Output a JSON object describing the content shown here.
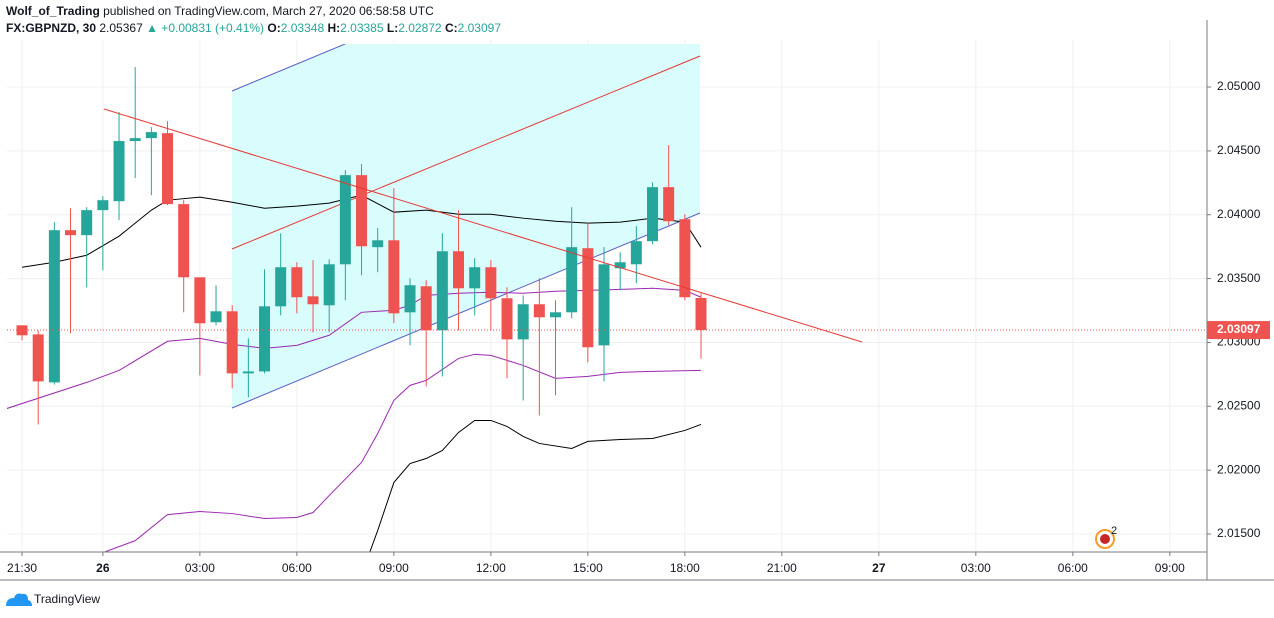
{
  "header": {
    "author": "Wolf_of_Trading",
    "published": "published on TradingView.com, March 27, 2020 06:58:58 UTC",
    "symbol": "FX:GBPNZD, 30",
    "price": "2.05367",
    "change": "▲ +0.00831 (+0.41%)",
    "ohlc": [
      {
        "label": "O:",
        "value": "2.03348"
      },
      {
        "label": "H:",
        "value": "2.03385"
      },
      {
        "label": "L:",
        "value": "2.02872"
      },
      {
        "label": "C:",
        "value": "2.03097"
      }
    ]
  },
  "badge": "2",
  "footer": "TradingView",
  "chart_data": {
    "type": "candlestick",
    "up_color": "#26a69a",
    "down_color": "#ef5350",
    "grid": true,
    "x": [
      0,
      1,
      2,
      3,
      4,
      5,
      6,
      7,
      8,
      9,
      10,
      11,
      12,
      13,
      14,
      15,
      16,
      17,
      18,
      19,
      20,
      21,
      22,
      23,
      24,
      25,
      26,
      27,
      28,
      29,
      30,
      31,
      32,
      33,
      34,
      35,
      36,
      37,
      38,
      39,
      40,
      41,
      42
    ],
    "open": [
      2.03134,
      2.03063,
      2.02687,
      2.03879,
      2.0384,
      2.04036,
      2.04106,
      2.04577,
      2.046,
      2.04639,
      2.04083,
      2.0351,
      2.03158,
      2.03244,
      2.02758,
      2.02773,
      2.03283,
      2.03589,
      2.03361,
      2.03291,
      2.03612,
      2.0431,
      2.03746,
      2.038,
      2.03236,
      2.0344,
      2.03095,
      2.03714,
      2.03424,
      2.03589,
      2.03346,
      2.03024,
      2.03299,
      2.03197,
      2.03236,
      2.03738,
      2.02977,
      2.03581,
      2.03612,
      2.03793,
      2.04216,
      2.03965,
      2.03348
    ],
    "high": [
      2.03134,
      2.03095,
      2.03942,
      2.04051,
      2.04059,
      2.04145,
      2.04804,
      2.05157,
      2.04686,
      2.04733,
      2.04114,
      2.0351,
      2.03448,
      2.03291,
      2.03032,
      2.03573,
      2.03855,
      2.03628,
      2.03644,
      2.03651,
      2.04349,
      2.04396,
      2.03895,
      2.04208,
      2.03503,
      2.03487,
      2.03855,
      2.04036,
      2.03659,
      2.03644,
      2.03432,
      2.03369,
      2.03503,
      2.0333,
      2.04059,
      2.03942,
      2.03746,
      2.03706,
      2.0391,
      2.04255,
      2.04545,
      2.04004,
      2.03385
    ],
    "low": [
      2.03016,
      2.02358,
      2.02671,
      2.03071,
      2.03432,
      2.03565,
      2.03957,
      2.04287,
      2.04153,
      2.04075,
      2.03236,
      2.02742,
      2.03134,
      2.0264,
      2.0257,
      2.02758,
      2.03212,
      2.03228,
      2.03079,
      2.03079,
      2.0333,
      2.03526,
      2.0355,
      2.0315,
      2.02977,
      2.02656,
      2.02734,
      2.03095,
      2.03212,
      2.03095,
      2.02719,
      2.02546,
      2.02428,
      2.02585,
      2.03189,
      2.02844,
      2.02695,
      2.03408,
      2.03463,
      2.03769,
      2.03918,
      2.0333,
      2.02872
    ],
    "close": [
      2.03056,
      2.02695,
      2.03879,
      2.0384,
      2.04036,
      2.04114,
      2.04577,
      2.046,
      2.04647,
      2.04083,
      2.0351,
      2.0315,
      2.03244,
      2.02758,
      2.02773,
      2.03283,
      2.03589,
      2.03354,
      2.03299,
      2.03612,
      2.0431,
      2.03753,
      2.038,
      2.03228,
      2.03448,
      2.03095,
      2.03714,
      2.03424,
      2.03589,
      2.03346,
      2.03024,
      2.03299,
      2.03197,
      2.03236,
      2.03746,
      2.02962,
      2.03612,
      2.03628,
      2.03793,
      2.04216,
      2.03949,
      2.03354,
      2.03097
    ],
    "lines": [
      {
        "color": "#000000",
        "x": [
          0,
          2,
          4,
          6,
          8,
          9,
          11,
          13,
          15,
          17,
          19,
          21,
          23,
          25,
          27,
          29,
          31,
          33,
          35,
          37,
          39,
          41,
          42
        ],
        "values": [
          2.03589,
          2.03628,
          2.03683,
          2.03832,
          2.04036,
          2.04114,
          2.04138,
          2.04098,
          2.04051,
          2.04067,
          2.04091,
          2.04153,
          2.0402,
          2.04036,
          2.04004,
          2.04004,
          2.03973,
          2.03949,
          2.03934,
          2.03942,
          2.03973,
          2.03942,
          2.03746
        ]
      },
      {
        "color": "#9c27b0",
        "x": [
          -0.93,
          4,
          6,
          9,
          11,
          13,
          15,
          17,
          19,
          21,
          23,
          24,
          25,
          27,
          29,
          31,
          33,
          35,
          37,
          39,
          41,
          42
        ],
        "values": [
          2.02483,
          2.02687,
          2.02781,
          2.03009,
          2.03032,
          2.02985,
          2.02954,
          2.02977,
          2.03056,
          2.03236,
          2.03252,
          2.03291,
          2.03369,
          2.03385,
          2.03393,
          2.03385,
          2.03401,
          2.03408,
          2.03416,
          2.03424,
          2.03408,
          2.03354
        ]
      },
      {
        "color": "#9c27b0",
        "x": [
          5,
          7,
          9,
          11,
          13,
          15,
          17,
          18,
          19,
          21,
          22,
          23,
          24,
          25,
          27,
          28,
          29,
          31,
          33,
          35,
          37,
          39,
          42
        ],
        "values": [
          2.01354,
          2.01448,
          2.01652,
          2.01676,
          2.0166,
          2.01621,
          2.01629,
          2.01668,
          2.01801,
          2.0206,
          2.02287,
          2.02546,
          2.02664,
          2.02703,
          2.02875,
          2.02907,
          2.02899,
          2.0282,
          2.02719,
          2.02734,
          2.02766,
          2.02773,
          2.02781
        ]
      },
      {
        "color": "#000000",
        "x": [
          21.5,
          22,
          23,
          24,
          25,
          26,
          27,
          28,
          29,
          30,
          31,
          32,
          34,
          35,
          37,
          39,
          41,
          42
        ],
        "values": [
          2.01354,
          2.01527,
          2.01903,
          2.02052,
          2.02091,
          2.02154,
          2.02295,
          2.02389,
          2.02389,
          2.02342,
          2.02264,
          2.02209,
          2.0217,
          2.02225,
          2.0224,
          2.02248,
          2.02311,
          2.02358
        ]
      }
    ],
    "xlim": [
      -0.93,
      73.3
    ],
    "xticks": [
      {
        "value": 0,
        "label": "21:30"
      },
      {
        "value": 5,
        "label": "26"
      },
      {
        "value": 11,
        "label": "03:00"
      },
      {
        "value": 17,
        "label": "06:00"
      },
      {
        "value": 23,
        "label": "09:00"
      },
      {
        "value": 29,
        "label": "12:00"
      },
      {
        "value": 35,
        "label": "15:00"
      },
      {
        "value": 41,
        "label": "18:00"
      },
      {
        "value": 47,
        "label": "21:00"
      },
      {
        "value": 53,
        "label": "27"
      },
      {
        "value": 59,
        "label": "03:00"
      },
      {
        "value": 65,
        "label": "06:00"
      },
      {
        "value": 71,
        "label": "09:00"
      }
    ],
    "ylim": [
      2.01359,
      2.05337
    ],
    "yticks": [
      {
        "value": 2.015,
        "label": "2.01500"
      },
      {
        "value": 2.02,
        "label": "2.02000"
      },
      {
        "value": 2.025,
        "label": "2.02500"
      },
      {
        "value": 2.03,
        "label": "2.03000"
      },
      {
        "value": 2.035,
        "label": "2.03500"
      },
      {
        "value": 2.04,
        "label": "2.04000"
      },
      {
        "value": 2.045,
        "label": "2.04500"
      },
      {
        "value": 2.05,
        "label": "2.05000"
      }
    ]
  }
}
